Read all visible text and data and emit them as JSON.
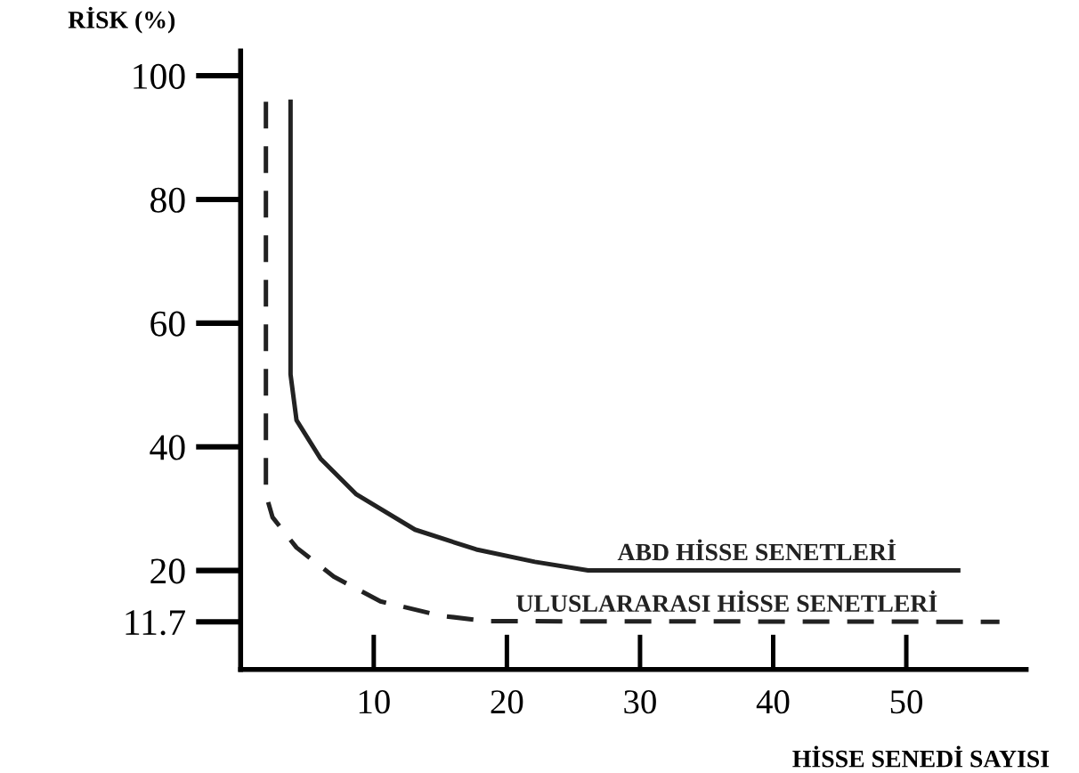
{
  "chart_data": {
    "type": "line",
    "ylabel": "RİSK (%)",
    "xlabel": "HİSSE SENEDİ SAYISI",
    "xlim": [
      0,
      59
    ],
    "ylim": [
      4,
      104
    ],
    "xticks": [
      10,
      20,
      30,
      40,
      50
    ],
    "yticks": [
      11.7,
      20,
      40,
      60,
      80,
      100
    ],
    "grid": false,
    "legend": false,
    "marker": "none",
    "series": [
      {
        "name": "ABD HİSSE SENETLERİ",
        "color": "#222222",
        "line_style": "solid",
        "x": [
          3.75,
          3.75,
          4.2,
          6.0,
          8.7,
          13.1,
          17.7,
          22.1,
          26.1,
          53.9
        ],
        "values": [
          95.8,
          51.7,
          44.3,
          38.1,
          32.3,
          26.6,
          23.4,
          21.4,
          20,
          20
        ]
      },
      {
        "name": "ULUSLARARASI HİSSE SENETLERİ",
        "color": "#222222",
        "line_style": "dashed",
        "x": [
          1.9,
          1.9,
          2.4,
          4.2,
          7.0,
          10.5,
          15.0,
          18.5,
          57
        ],
        "values": [
          95.8,
          32.3,
          28.6,
          23.7,
          19.0,
          15.0,
          12.7,
          11.8,
          11.7
        ]
      }
    ]
  }
}
